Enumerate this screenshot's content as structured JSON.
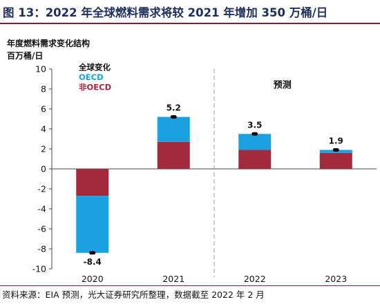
{
  "title": "图 13：2022 年全球燃料需求将较 2021 年增加 350 万桶/日",
  "source": "资料来源：EIA 预测，光大证券研究所整理，数据截至 2022 年 2 月",
  "colors": {
    "title": "#1f2f5c",
    "rule": "#8c1c2c",
    "oecd": "#1ba1e2",
    "non_oecd": "#a3293d",
    "total_marker": "#000000",
    "forecast_divider": "#9a9a9a"
  },
  "chart_data": {
    "type": "bar",
    "stacked": true,
    "ylabel": "年度燃料需求变化结构",
    "unit_label": "百万桶/日",
    "categories": [
      "2020",
      "2021",
      "2022",
      "2023"
    ],
    "ylim": [
      -10,
      10
    ],
    "yticks": [
      10,
      8,
      6,
      4,
      2,
      0,
      -2,
      -4,
      -6,
      -8,
      -10
    ],
    "series": [
      {
        "name": "OECD",
        "values": [
          -5.7,
          2.5,
          1.6,
          0.3
        ]
      },
      {
        "name": "非OECD",
        "values": [
          -2.7,
          2.7,
          1.9,
          1.6
        ]
      }
    ],
    "totals": {
      "name": "全球变化",
      "values": [
        -8.4,
        5.2,
        3.5,
        1.9
      ]
    },
    "total_labels": [
      "-8.4",
      "5.2",
      "3.5",
      "1.9"
    ],
    "forecast_label": "预测",
    "forecast_start_category": "2022",
    "legend_position": "top-left",
    "grid": false
  }
}
